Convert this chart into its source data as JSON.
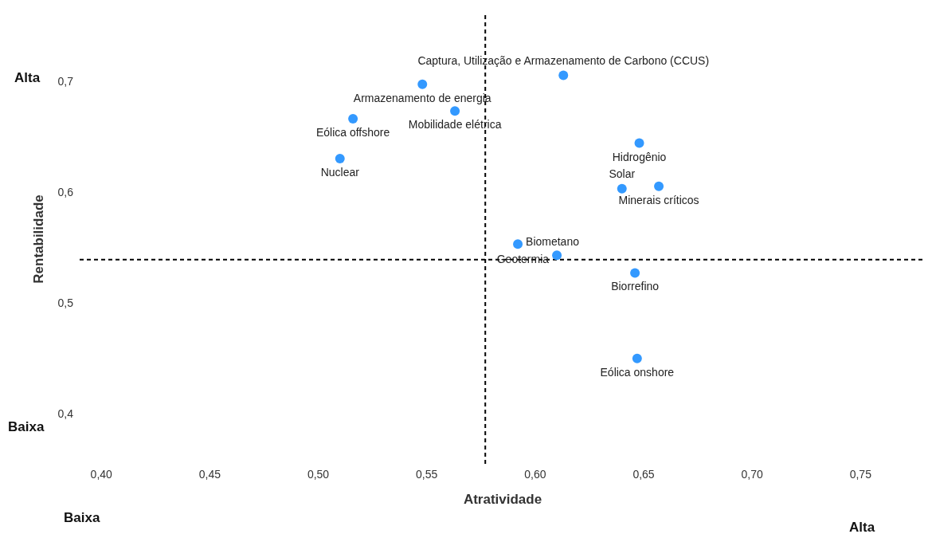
{
  "chart_data": {
    "type": "scatter",
    "xlabel": "Atratividade",
    "ylabel": "Rentabilidade",
    "x": [
      0.613,
      0.548,
      0.563,
      0.516,
      0.51,
      0.648,
      0.64,
      0.657,
      0.592,
      0.61,
      0.646,
      0.647
    ],
    "values": [
      0.705,
      0.697,
      0.673,
      0.666,
      0.63,
      0.644,
      0.603,
      0.605,
      0.553,
      0.543,
      0.527,
      0.45
    ],
    "color": "#3399ff",
    "marker": "circle",
    "xlim": [
      0.39,
      0.78
    ],
    "ylim": [
      0.355,
      0.76
    ],
    "xticks": [
      {
        "value": 0.4,
        "label": "0,40"
      },
      {
        "value": 0.45,
        "label": "0,45"
      },
      {
        "value": 0.5,
        "label": "0,50"
      },
      {
        "value": 0.55,
        "label": "0,55"
      },
      {
        "value": 0.6,
        "label": "0,60"
      },
      {
        "value": 0.65,
        "label": "0,65"
      },
      {
        "value": 0.7,
        "label": "0,70"
      },
      {
        "value": 0.75,
        "label": "0,75"
      }
    ],
    "yticks": [
      {
        "value": 0.4,
        "label": "0,4"
      },
      {
        "value": 0.5,
        "label": "0,5"
      },
      {
        "value": 0.6,
        "label": "0,6"
      },
      {
        "value": 0.7,
        "label": "0,7"
      }
    ],
    "ref_lines": [
      {
        "axis": "x",
        "value": 0.577,
        "line_style": "dashed",
        "color": "#000000"
      },
      {
        "axis": "y",
        "value": 0.539,
        "line_style": "dashed",
        "color": "#000000"
      }
    ],
    "annotations": [
      "Alta",
      "Baixa",
      "Baixa",
      "Alta",
      {
        "text": "Captura, Utilização e Armazenamento de Carbono (CCUS)",
        "x": 0.613,
        "y": 0.705
      },
      {
        "text": "Armazenamento de energia",
        "x": 0.548,
        "y": 0.697
      },
      {
        "text": "Mobilidade elétrica",
        "x": 0.563,
        "y": 0.673
      },
      {
        "text": "Eólica offshore",
        "x": 0.516,
        "y": 0.666
      },
      {
        "text": "Nuclear",
        "x": 0.51,
        "y": 0.63
      },
      {
        "text": "Hidrogênio",
        "x": 0.648,
        "y": 0.644
      },
      {
        "text": "Solar",
        "x": 0.64,
        "y": 0.603
      },
      {
        "text": "Minerais críticos",
        "x": 0.657,
        "y": 0.605
      },
      {
        "text": "Biometano",
        "x": 0.592,
        "y": 0.553
      },
      {
        "text": "Geotermia",
        "x": 0.61,
        "y": 0.543
      },
      {
        "text": "Biorrefino",
        "x": 0.646,
        "y": 0.527
      },
      {
        "text": "Eólica onshore",
        "x": 0.647,
        "y": 0.45
      }
    ]
  }
}
